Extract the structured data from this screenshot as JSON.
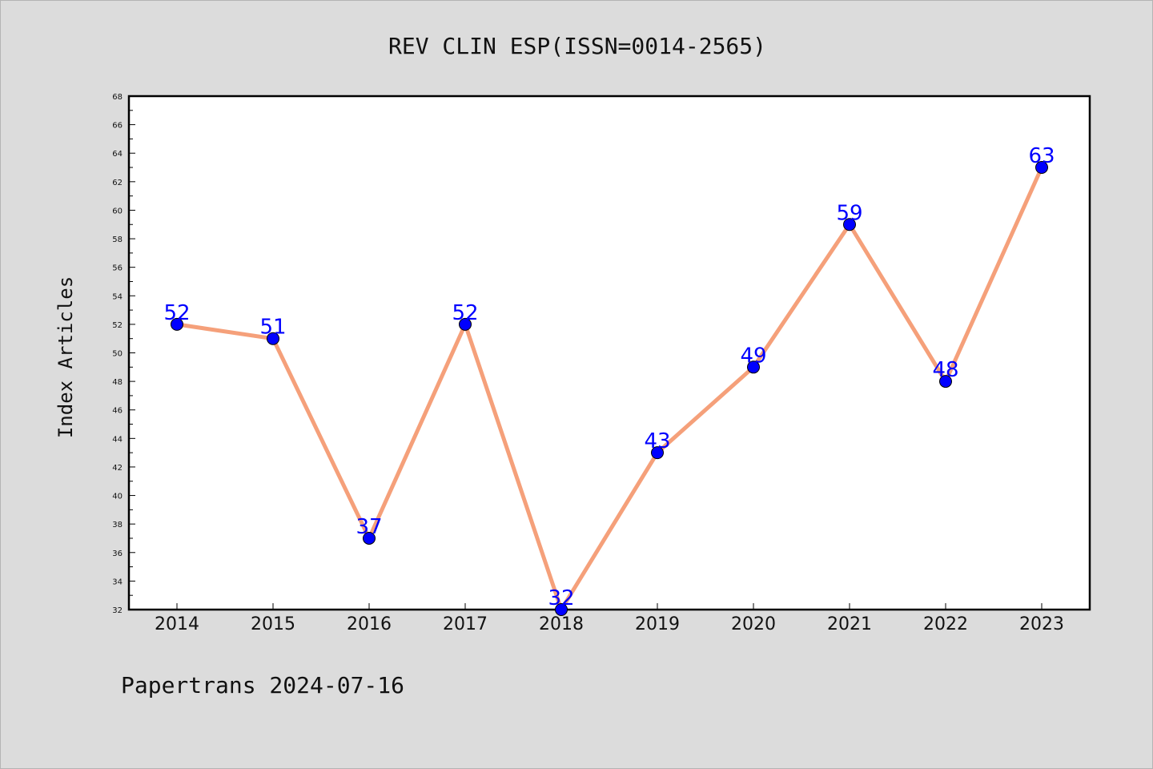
{
  "chart_data": {
    "type": "line",
    "title": "REV CLIN ESP(ISSN=0014-2565)",
    "ylabel": "Index Articles",
    "xlabel": "",
    "categories": [
      "2014",
      "2015",
      "2016",
      "2017",
      "2018",
      "2019",
      "2020",
      "2021",
      "2022",
      "2023"
    ],
    "series": [
      {
        "values": [
          52,
          51,
          37,
          52,
          32,
          43,
          49,
          59,
          48,
          63
        ]
      }
    ],
    "ylim": [
      32,
      68
    ],
    "yticks": [
      "32",
      "34",
      "36",
      "38",
      "40",
      "42",
      "44",
      "46",
      "48",
      "50",
      "52",
      "54",
      "56",
      "58",
      "60",
      "62",
      "64",
      "66",
      "68"
    ],
    "line_color": "#f5a07a",
    "marker_color": "#0000ff",
    "label_color": "#0000ff",
    "grid": false,
    "legend": "none"
  },
  "footer": "Papertrans 2024-07-16"
}
